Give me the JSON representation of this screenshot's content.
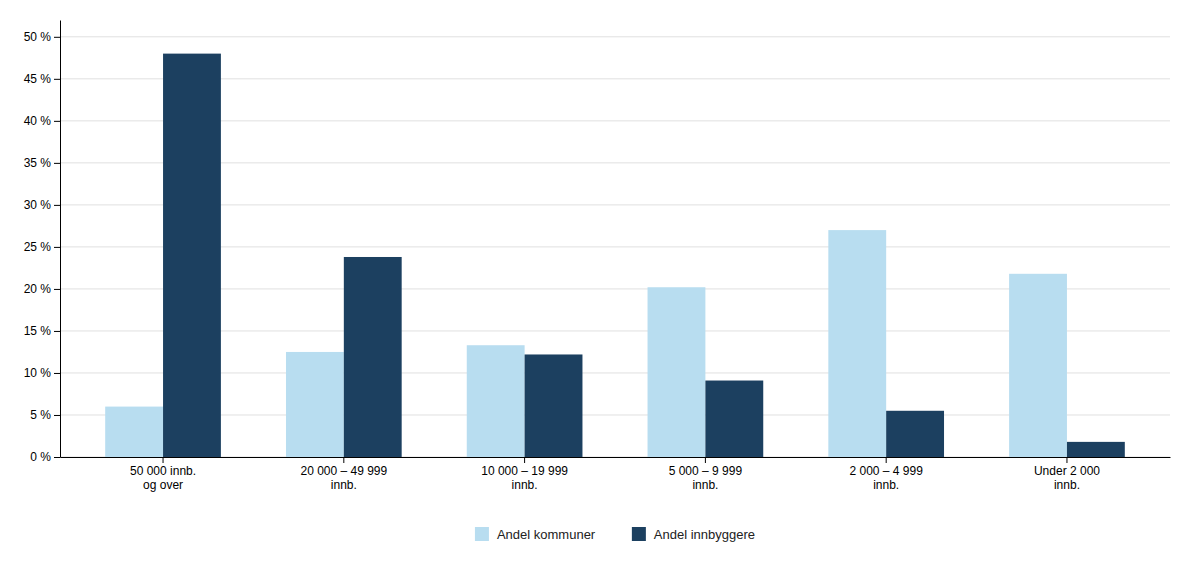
{
  "chart_data": {
    "type": "bar",
    "categories": [
      "50 000 innb.\nog over",
      "20 000 – 49 999\ninnb.",
      "10 000 – 19 999\ninnb.",
      "5 000 – 9 999\ninnb.",
      "2 000 – 4 999\ninnb.",
      "Under 2 000\ninnb."
    ],
    "series": [
      {
        "name": "Andel kommuner",
        "color": "#b8ddf0",
        "values": [
          6.0,
          12.5,
          13.3,
          20.2,
          27.0,
          21.8
        ]
      },
      {
        "name": "Andel innbyggere",
        "color": "#1c4060",
        "values": [
          48.0,
          23.8,
          12.2,
          9.1,
          5.5,
          1.8
        ]
      }
    ],
    "ylim": [
      0,
      52
    ],
    "yticks": [
      {
        "value": 0,
        "label": "0 %"
      },
      {
        "value": 5,
        "label": "5 %"
      },
      {
        "value": 10,
        "label": "10 %"
      },
      {
        "value": 15,
        "label": "15 %"
      },
      {
        "value": 20,
        "label": "20 %"
      },
      {
        "value": 25,
        "label": "25 %"
      },
      {
        "value": 30,
        "label": "30 %"
      },
      {
        "value": 35,
        "label": "35 %"
      },
      {
        "value": 40,
        "label": "40 %"
      },
      {
        "value": 45,
        "label": "45 %"
      },
      {
        "value": 50,
        "label": "50 %"
      }
    ],
    "grid": true,
    "legend": "bottom"
  }
}
